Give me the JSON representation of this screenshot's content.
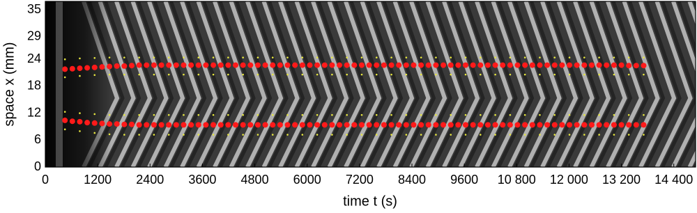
{
  "chart_data": {
    "type": "scatter",
    "xlabel": "time t (s)",
    "ylabel": "space x (mm)",
    "xlim": [
      0,
      14900
    ],
    "ylim": [
      0,
      36.9
    ],
    "xticks": [
      0,
      1200,
      2400,
      3600,
      4800,
      6000,
      7200,
      8400,
      9600,
      {
        "value": 10800,
        "label": "10 800"
      },
      {
        "value": 12000,
        "label": "12 000"
      },
      {
        "value": 13200,
        "label": "13 200"
      },
      {
        "value": 14400,
        "label": "14 400"
      }
    ],
    "yticks": [
      0,
      6,
      12,
      18,
      24,
      29,
      35
    ],
    "series": [
      {
        "color": "#ff1a1a",
        "size": 4,
        "x": [
          450,
          620,
          790,
          960,
          1130,
          1300,
          1470,
          1640,
          1810,
          1980,
          2150,
          2320,
          2490,
          2660,
          2830,
          3000,
          3170,
          3340,
          3510,
          3680,
          3850,
          4020,
          4190,
          4360,
          4530,
          4700,
          4870,
          5040,
          5210,
          5380,
          5550,
          5720,
          5890,
          6060,
          6230,
          6400,
          6570,
          6740,
          6910,
          7080,
          7250,
          7420,
          7590,
          7760,
          7930,
          8100,
          8270,
          8440,
          8610,
          8780,
          8950,
          9120,
          9290,
          9460,
          9630,
          9800,
          9970,
          10140,
          10310,
          10480,
          10650,
          10820,
          10990,
          11160,
          11330,
          11500,
          11670,
          11840,
          12010,
          12180,
          12350,
          12520,
          12690,
          12860,
          13030,
          13200,
          13370,
          13540,
          13710
        ],
        "values": [
          21.8,
          21.9,
          22.0,
          22.1,
          22.2,
          22.3,
          22.4,
          22.5,
          22.5,
          22.6,
          22.7,
          22.7,
          22.7,
          22.7,
          22.7,
          22.7,
          22.7,
          22.7,
          22.7,
          22.7,
          22.7,
          22.7,
          22.7,
          22.7,
          22.7,
          22.7,
          22.7,
          22.7,
          22.7,
          22.7,
          22.7,
          22.7,
          22.7,
          22.7,
          22.7,
          22.7,
          22.7,
          22.7,
          22.7,
          22.7,
          22.7,
          22.7,
          22.7,
          22.7,
          22.7,
          22.7,
          22.7,
          22.7,
          22.7,
          22.7,
          22.7,
          22.7,
          22.7,
          22.7,
          22.7,
          22.7,
          22.7,
          22.7,
          22.7,
          22.7,
          22.7,
          22.7,
          22.7,
          22.7,
          22.7,
          22.7,
          22.7,
          22.7,
          22.7,
          22.7,
          22.7,
          22.7,
          22.7,
          22.7,
          22.7,
          22.7,
          22.6,
          22.6,
          22.6
        ]
      },
      {
        "color": "#ff1a1a",
        "size": 4,
        "x": [
          450,
          620,
          790,
          960,
          1130,
          1300,
          1470,
          1640,
          1810,
          1980,
          2150,
          2320,
          2490,
          2660,
          2830,
          3000,
          3170,
          3340,
          3510,
          3680,
          3850,
          4020,
          4190,
          4360,
          4530,
          4700,
          4870,
          5040,
          5210,
          5380,
          5550,
          5720,
          5890,
          6060,
          6230,
          6400,
          6570,
          6740,
          6910,
          7080,
          7250,
          7420,
          7590,
          7760,
          7930,
          8100,
          8270,
          8440,
          8610,
          8780,
          8950,
          9120,
          9290,
          9460,
          9630,
          9800,
          9970,
          10140,
          10310,
          10480,
          10650,
          10820,
          10990,
          11160,
          11330,
          11500,
          11670,
          11840,
          12010,
          12180,
          12350,
          12520,
          12690,
          12860,
          13030,
          13200,
          13370,
          13540,
          13710
        ],
        "values": [
          10.4,
          10.2,
          10.1,
          9.9,
          9.8,
          9.7,
          9.6,
          9.6,
          9.5,
          9.5,
          9.4,
          9.4,
          9.4,
          9.4,
          9.4,
          9.4,
          9.4,
          9.4,
          9.4,
          9.4,
          9.4,
          9.4,
          9.4,
          9.4,
          9.4,
          9.4,
          9.4,
          9.4,
          9.4,
          9.4,
          9.4,
          9.4,
          9.4,
          9.4,
          9.4,
          9.4,
          9.4,
          9.4,
          9.4,
          9.4,
          9.4,
          9.4,
          9.4,
          9.4,
          9.4,
          9.4,
          9.4,
          9.4,
          9.4,
          9.4,
          9.4,
          9.4,
          9.4,
          9.4,
          9.4,
          9.4,
          9.4,
          9.4,
          9.4,
          9.4,
          9.4,
          9.4,
          9.4,
          9.4,
          9.4,
          9.4,
          9.4,
          9.4,
          9.4,
          9.4,
          9.4,
          9.4,
          9.4,
          9.4,
          9.4,
          9.4,
          9.4,
          9.4,
          9.4
        ]
      },
      {
        "color": "#e8e840",
        "size": 1.3,
        "x": [
          450,
          790,
          1130,
          1470,
          1810,
          2150,
          2490,
          2830,
          3170,
          3510,
          3850,
          4190,
          4530,
          4870,
          5210,
          5550,
          5890,
          6230,
          6570,
          6910,
          7250,
          7590,
          7930,
          8270,
          8610,
          8950,
          9290,
          9630,
          9970,
          10310,
          10650,
          10990,
          11330,
          11670,
          12010,
          12350,
          12690,
          13030,
          13370,
          13710
        ],
        "values": [
          24.0,
          24.2,
          24.3,
          24.4,
          24.4,
          24.4,
          24.4,
          24.4,
          24.4,
          24.4,
          24.4,
          24.4,
          24.4,
          24.4,
          24.4,
          24.4,
          24.4,
          24.4,
          24.4,
          24.4,
          24.4,
          24.4,
          24.4,
          24.4,
          24.4,
          24.4,
          24.4,
          24.4,
          24.4,
          24.4,
          24.4,
          24.4,
          24.4,
          24.4,
          24.4,
          24.4,
          24.4,
          24.4,
          24.4,
          24.4
        ]
      },
      {
        "color": "#e8e840",
        "size": 1.3,
        "x": [
          450,
          790,
          1130,
          1470,
          1810,
          2150,
          2490,
          2830,
          3170,
          3510,
          3850,
          4190,
          4530,
          4870,
          5210,
          5550,
          5890,
          6230,
          6570,
          6910,
          7250,
          7590,
          7930,
          8270,
          8610,
          8950,
          9290,
          9630,
          9970,
          10310,
          10650,
          10990,
          11330,
          11670,
          12010,
          12350,
          12690,
          13030,
          13370,
          13710
        ],
        "values": [
          20.0,
          20.3,
          20.5,
          20.6,
          20.6,
          20.6,
          20.6,
          20.6,
          20.6,
          20.6,
          20.6,
          20.6,
          20.6,
          20.6,
          20.6,
          20.6,
          20.6,
          20.6,
          20.6,
          20.6,
          20.6,
          20.6,
          20.6,
          20.6,
          20.6,
          20.6,
          20.6,
          20.6,
          20.6,
          20.6,
          20.6,
          20.6,
          20.6,
          20.6,
          20.6,
          20.6,
          20.6,
          20.6,
          20.6,
          20.6
        ]
      },
      {
        "color": "#e8e840",
        "size": 1.3,
        "x": [
          450,
          790,
          1130,
          1470,
          1810,
          2150,
          2490,
          2830,
          3170,
          3510,
          3850,
          4190,
          4530,
          4870,
          5210,
          5550,
          5890,
          6230,
          6570,
          6910,
          7250,
          7590,
          7930,
          8270,
          8610,
          8950,
          9290,
          9630,
          9970,
          10310,
          10650,
          10990,
          11330,
          11670,
          12010,
          12350,
          12690,
          13030,
          13370,
          13710
        ],
        "values": [
          12.3,
          12.0,
          11.8,
          11.6,
          11.6,
          11.6,
          11.6,
          11.6,
          11.6,
          11.6,
          11.6,
          11.6,
          11.6,
          11.6,
          11.6,
          11.6,
          11.6,
          11.6,
          11.6,
          11.6,
          11.6,
          11.6,
          11.6,
          11.6,
          11.6,
          11.6,
          11.6,
          11.6,
          11.6,
          11.6,
          11.6,
          11.6,
          11.6,
          11.6,
          11.6,
          11.6,
          11.6,
          11.6,
          11.6,
          11.6
        ]
      },
      {
        "color": "#e8e840",
        "size": 1.3,
        "x": [
          450,
          790,
          1130,
          1470,
          1810,
          2150,
          2490,
          2830,
          3170,
          3510,
          3850,
          4190,
          4530,
          4870,
          5210,
          5550,
          5890,
          6230,
          6570,
          6910,
          7250,
          7590,
          7930,
          8270,
          8610,
          8950,
          9290,
          9630,
          9970,
          10310,
          10650,
          10990,
          11330,
          11670,
          12010,
          12350,
          12690,
          13030,
          13370,
          13710
        ],
        "values": [
          8.4,
          8.0,
          7.6,
          7.3,
          7.2,
          7.2,
          7.2,
          7.2,
          7.2,
          7.2,
          7.2,
          7.2,
          7.2,
          7.2,
          7.2,
          7.2,
          7.2,
          7.2,
          7.2,
          7.2,
          7.2,
          7.2,
          7.2,
          7.2,
          7.2,
          7.2,
          7.2,
          7.2,
          7.2,
          7.2,
          7.2,
          7.2,
          7.2,
          7.2,
          7.2,
          7.2,
          7.2,
          7.2,
          7.2,
          7.2
        ]
      }
    ]
  }
}
